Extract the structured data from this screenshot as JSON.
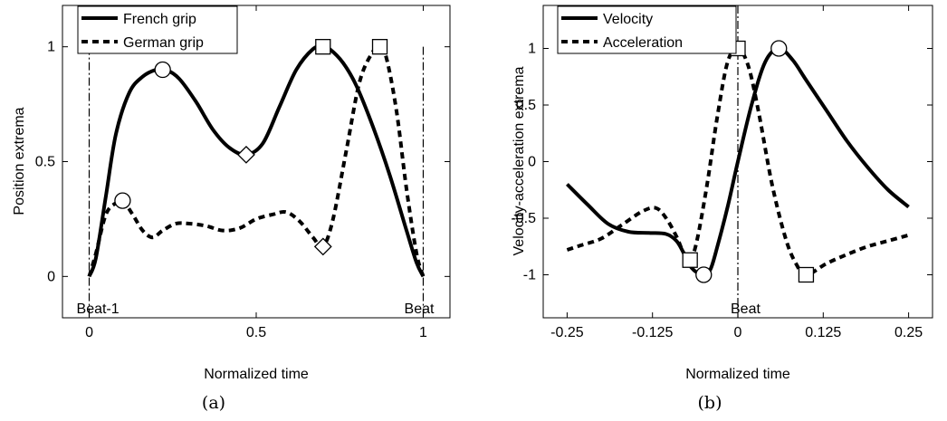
{
  "chart_data": [
    {
      "type": "line",
      "caption": "(a)",
      "xlabel": "Normalized time",
      "ylabel": "Position extrema",
      "xlim": [
        -0.08,
        1.08
      ],
      "ylim": [
        -0.18,
        1.18
      ],
      "x_ticks": [
        0,
        0.5,
        1
      ],
      "x_tick_labels": [
        "0",
        "0.5",
        "1"
      ],
      "y_ticks": [
        0,
        0.5,
        1
      ],
      "y_tick_labels": [
        "0",
        "0.5",
        "1"
      ],
      "grid": false,
      "legend": "top-left",
      "vlines": [
        {
          "x": 0,
          "label": "Beat-1",
          "style": "dashdot"
        },
        {
          "x": 1,
          "label": "Beat",
          "style": "dashdot"
        }
      ],
      "series": [
        {
          "name": "French grip",
          "style": "solid",
          "x": [
            0,
            0.02,
            0.05,
            0.08,
            0.12,
            0.16,
            0.2,
            0.23,
            0.27,
            0.32,
            0.37,
            0.42,
            0.47,
            0.52,
            0.57,
            0.62,
            0.67,
            0.7,
            0.72,
            0.76,
            0.8,
            0.85,
            0.9,
            0.95,
            0.98,
            1
          ],
          "y": [
            0,
            0.08,
            0.35,
            0.62,
            0.8,
            0.87,
            0.9,
            0.9,
            0.86,
            0.76,
            0.64,
            0.56,
            0.53,
            0.58,
            0.74,
            0.9,
            0.99,
            1.0,
            0.99,
            0.93,
            0.83,
            0.65,
            0.44,
            0.2,
            0.06,
            0
          ]
        },
        {
          "name": "German grip",
          "style": "dashed",
          "x": [
            0,
            0.02,
            0.05,
            0.08,
            0.1,
            0.13,
            0.16,
            0.19,
            0.22,
            0.26,
            0.3,
            0.35,
            0.4,
            0.45,
            0.5,
            0.55,
            0.59,
            0.63,
            0.67,
            0.7,
            0.73,
            0.77,
            0.81,
            0.85,
            0.87,
            0.89,
            0.92,
            0.95,
            0.98,
            1
          ],
          "y": [
            0,
            0.1,
            0.27,
            0.32,
            0.33,
            0.27,
            0.2,
            0.17,
            0.2,
            0.23,
            0.23,
            0.22,
            0.2,
            0.21,
            0.25,
            0.27,
            0.28,
            0.24,
            0.17,
            0.13,
            0.25,
            0.55,
            0.85,
            0.98,
            1.0,
            0.95,
            0.72,
            0.38,
            0.1,
            0
          ]
        }
      ],
      "markers": [
        {
          "shape": "circle",
          "x": 0.1,
          "y": 0.33
        },
        {
          "shape": "circle",
          "x": 0.22,
          "y": 0.9
        },
        {
          "shape": "diamond",
          "x": 0.47,
          "y": 0.53
        },
        {
          "shape": "diamond",
          "x": 0.7,
          "y": 0.13
        },
        {
          "shape": "square",
          "x": 0.7,
          "y": 1.0
        },
        {
          "shape": "square",
          "x": 0.87,
          "y": 1.0
        }
      ]
    },
    {
      "type": "line",
      "caption": "(b)",
      "xlabel": "Normalized time",
      "ylabel": "Velocity-acceleration extrema",
      "xlim": [
        -0.285,
        0.285
      ],
      "ylim": [
        -1.38,
        1.38
      ],
      "x_ticks": [
        -0.25,
        -0.125,
        0,
        0.125,
        0.25
      ],
      "x_tick_labels": [
        "-0.25",
        "-0.125",
        "0",
        "0.125",
        "0.25"
      ],
      "y_ticks": [
        -1,
        -0.5,
        0,
        0.5,
        1
      ],
      "y_tick_labels": [
        "-1",
        "-0.5",
        "0",
        "0.5",
        "1"
      ],
      "grid": false,
      "legend": "top-left",
      "vlines": [
        {
          "x": 0,
          "label": "Beat",
          "style": "dashdot"
        }
      ],
      "series": [
        {
          "name": "Velocity",
          "style": "solid",
          "x": [
            -0.25,
            -0.22,
            -0.19,
            -0.16,
            -0.13,
            -0.105,
            -0.09,
            -0.08,
            -0.07,
            -0.06,
            -0.05,
            -0.04,
            -0.03,
            -0.015,
            0,
            0.02,
            0.04,
            0.06,
            0.08,
            0.1,
            0.13,
            0.16,
            0.19,
            0.22,
            0.25
          ],
          "y": [
            -0.2,
            -0.38,
            -0.55,
            -0.62,
            -0.63,
            -0.64,
            -0.7,
            -0.8,
            -0.92,
            -0.98,
            -1.0,
            -0.95,
            -0.75,
            -0.4,
            0.0,
            0.5,
            0.88,
            1.0,
            0.9,
            0.72,
            0.45,
            0.18,
            -0.05,
            -0.25,
            -0.4
          ]
        },
        {
          "name": "Acceleration",
          "style": "dashed",
          "x": [
            -0.25,
            -0.23,
            -0.2,
            -0.17,
            -0.14,
            -0.12,
            -0.105,
            -0.09,
            -0.08,
            -0.07,
            -0.06,
            -0.045,
            -0.03,
            -0.015,
            0,
            0.015,
            0.03,
            0.05,
            0.07,
            0.085,
            0.1,
            0.13,
            0.16,
            0.19,
            0.22,
            0.25
          ],
          "y": [
            -0.78,
            -0.74,
            -0.68,
            -0.56,
            -0.44,
            -0.41,
            -0.5,
            -0.66,
            -0.8,
            -0.87,
            -0.7,
            -0.2,
            0.4,
            0.88,
            1.0,
            0.85,
            0.45,
            -0.2,
            -0.68,
            -0.9,
            -1.0,
            -0.9,
            -0.82,
            -0.75,
            -0.7,
            -0.65
          ]
        }
      ],
      "markers": [
        {
          "shape": "square",
          "x": -0.07,
          "y": -0.87
        },
        {
          "shape": "circle",
          "x": -0.05,
          "y": -1.0
        },
        {
          "shape": "square",
          "x": 0,
          "y": 1.0
        },
        {
          "shape": "circle",
          "x": 0.06,
          "y": 1.0
        },
        {
          "shape": "square",
          "x": 0.1,
          "y": -1.0
        }
      ]
    }
  ]
}
